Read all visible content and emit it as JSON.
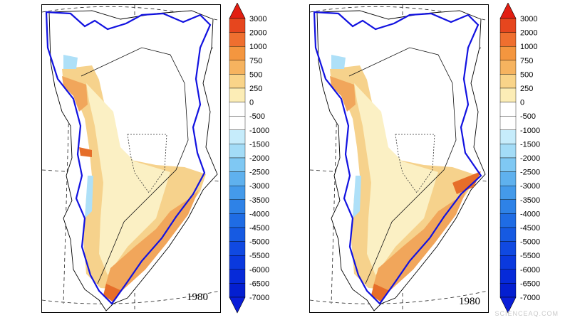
{
  "colorbar": {
    "ticks": [
      "3000",
      "2000",
      "1000",
      "750",
      "500",
      "250",
      "0",
      "-500",
      "-1000",
      "-1500",
      "-2000",
      "-2500",
      "-3000",
      "-3500",
      "-4000",
      "-4500",
      "-5000",
      "-5500",
      "-6000",
      "-6500",
      "-7000"
    ],
    "colors": [
      "#e6461e",
      "#ef6f2f",
      "#f4963f",
      "#f6b35f",
      "#f9d489",
      "#fcedb6",
      "#ffffff",
      "#ffffff",
      "#c6ecfb",
      "#a3dcf7",
      "#7fc8f3",
      "#5fb1ee",
      "#449aea",
      "#2e82e7",
      "#1f6ce4",
      "#165ae2",
      "#1049e1",
      "#0a39de",
      "#062ad9",
      "#041fd0",
      "#0313c4"
    ],
    "top_arrow_color": "#e21e12",
    "bottom_arrow_color": "#0a1ed8",
    "units_note": ""
  },
  "panels": [
    {
      "name": "left",
      "year": "1980"
    },
    {
      "name": "right",
      "year": "1980"
    }
  ],
  "colors": {
    "ice_margin": "#1212e0",
    "outline": "#000000",
    "light_yellow": "#fbf0c4",
    "peach": "#f6d28c",
    "orange": "#f1a65b",
    "dark_orange": "#e66e2a",
    "light_blue": "#aee0f8",
    "mid_blue": "#6bbcf0"
  },
  "watermark": "SCIENCEAQ.COM"
}
